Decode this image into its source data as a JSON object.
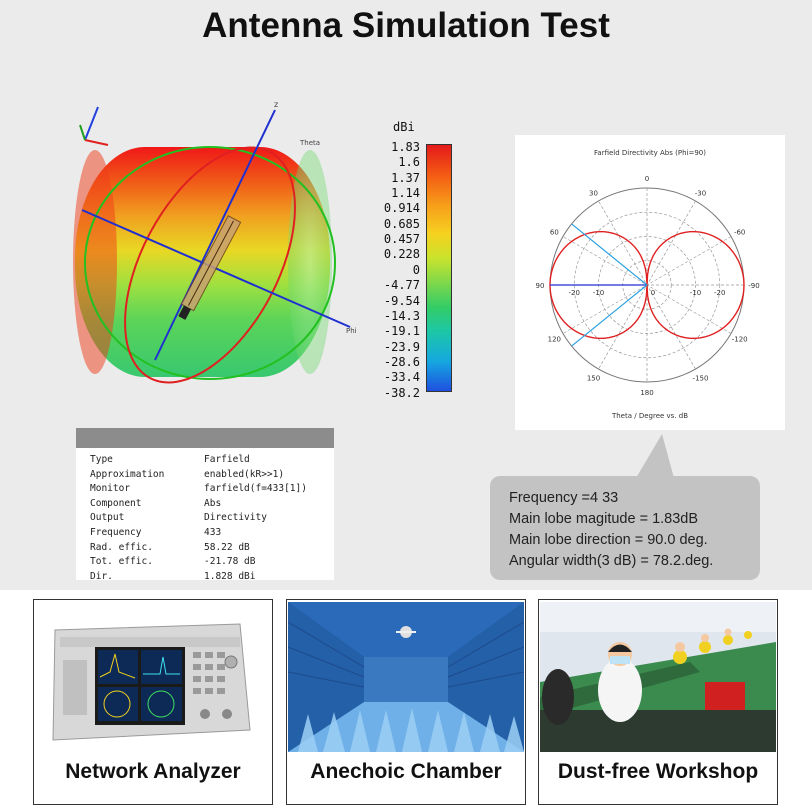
{
  "title": "Antenna Simulation Test",
  "colors": {
    "red": "#e02020",
    "blue": "#2030d0",
    "green": "#22c020",
    "polar_blue": "#2aa0e0"
  },
  "pattern3d": {
    "axis_labels": [
      "z",
      "Theta",
      "Phi"
    ],
    "colorbar_unit": "dBi",
    "colorbar_ticks": [
      "1.83",
      "1.6",
      "1.37",
      "1.14",
      "0.914",
      "0.685",
      "0.457",
      "0.228",
      "0",
      "-4.77",
      "-9.54",
      "-14.3",
      "-19.1",
      "-23.9",
      "-28.6",
      "-33.4",
      "-38.2"
    ]
  },
  "polar": {
    "title": "Farfield Directivity Abs (Phi=90)",
    "xlabel": "Theta / Degree vs. dB",
    "angle_labels": [
      "0",
      "30",
      "60",
      "90",
      "120",
      "150",
      "180",
      "-150",
      "-120",
      "-90",
      "-60",
      "-30"
    ],
    "radial_labels": [
      "-20",
      "-10",
      "0",
      "-10",
      "-20"
    ]
  },
  "properties_table": {
    "rows": [
      {
        "key": "Type",
        "value": "Farfield"
      },
      {
        "key": "Approximation",
        "value": "enabled(kR>>1)"
      },
      {
        "key": "Monitor",
        "value": "farfield(f=433[1])"
      },
      {
        "key": "Component",
        "value": "Abs"
      },
      {
        "key": "Output",
        "value": "Directivity"
      },
      {
        "key": "Frequency",
        "value": "433"
      },
      {
        "key": "Rad. effic.",
        "value": "58.22 dB"
      },
      {
        "key": "Tot. effic.",
        "value": "-21.78 dB"
      },
      {
        "key": "Dir.",
        "value": "1.828 dBi"
      }
    ]
  },
  "callout": {
    "lines": [
      "Frequency =4 33",
      "Main lobe magitude =    1.83dB",
      "Main lobe direction =   90.0 deg.",
      "Angular width(3 dB) =   78.2.deg."
    ]
  },
  "cards": [
    {
      "label": "Network Analyzer"
    },
    {
      "label": "Anechoic Chamber"
    },
    {
      "label": "Dust-free Workshop"
    }
  ]
}
